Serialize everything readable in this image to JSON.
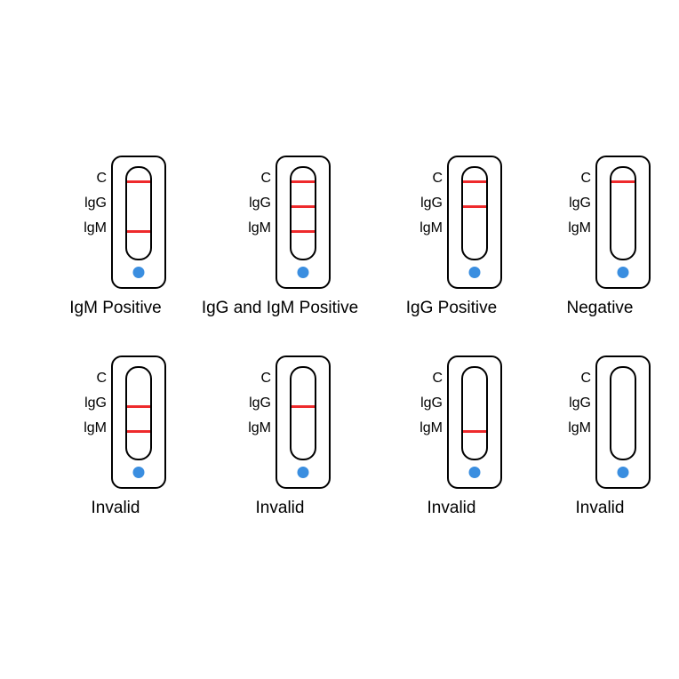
{
  "diagram": {
    "type": "infographic",
    "background_color": "#ffffff",
    "line_color": "#ee2a2c",
    "dot_color": "#3a8ee0",
    "outline_color": "#000000",
    "label_fontsize": 16,
    "caption_fontsize": 19,
    "line_positions": {
      "C": 14,
      "IgG": 42,
      "IgM": 70
    },
    "markers": [
      {
        "key": "C",
        "label": "C"
      },
      {
        "key": "IgG",
        "label": "lgG"
      },
      {
        "key": "IgM",
        "label": "lgM"
      }
    ],
    "cassettes": [
      {
        "caption": "IgM Positive",
        "lines": [
          "C",
          "IgM"
        ]
      },
      {
        "caption": "IgG and IgM Positive",
        "lines": [
          "C",
          "IgG",
          "IgM"
        ]
      },
      {
        "caption": "IgG Positive",
        "lines": [
          "C",
          "IgG"
        ]
      },
      {
        "caption": "Negative",
        "lines": [
          "C"
        ]
      },
      {
        "caption": "Invalid",
        "lines": [
          "IgG",
          "IgM"
        ]
      },
      {
        "caption": "Invalid",
        "lines": [
          "IgG"
        ]
      },
      {
        "caption": "Invalid",
        "lines": [
          "IgM"
        ]
      },
      {
        "caption": "Invalid",
        "lines": []
      }
    ]
  }
}
